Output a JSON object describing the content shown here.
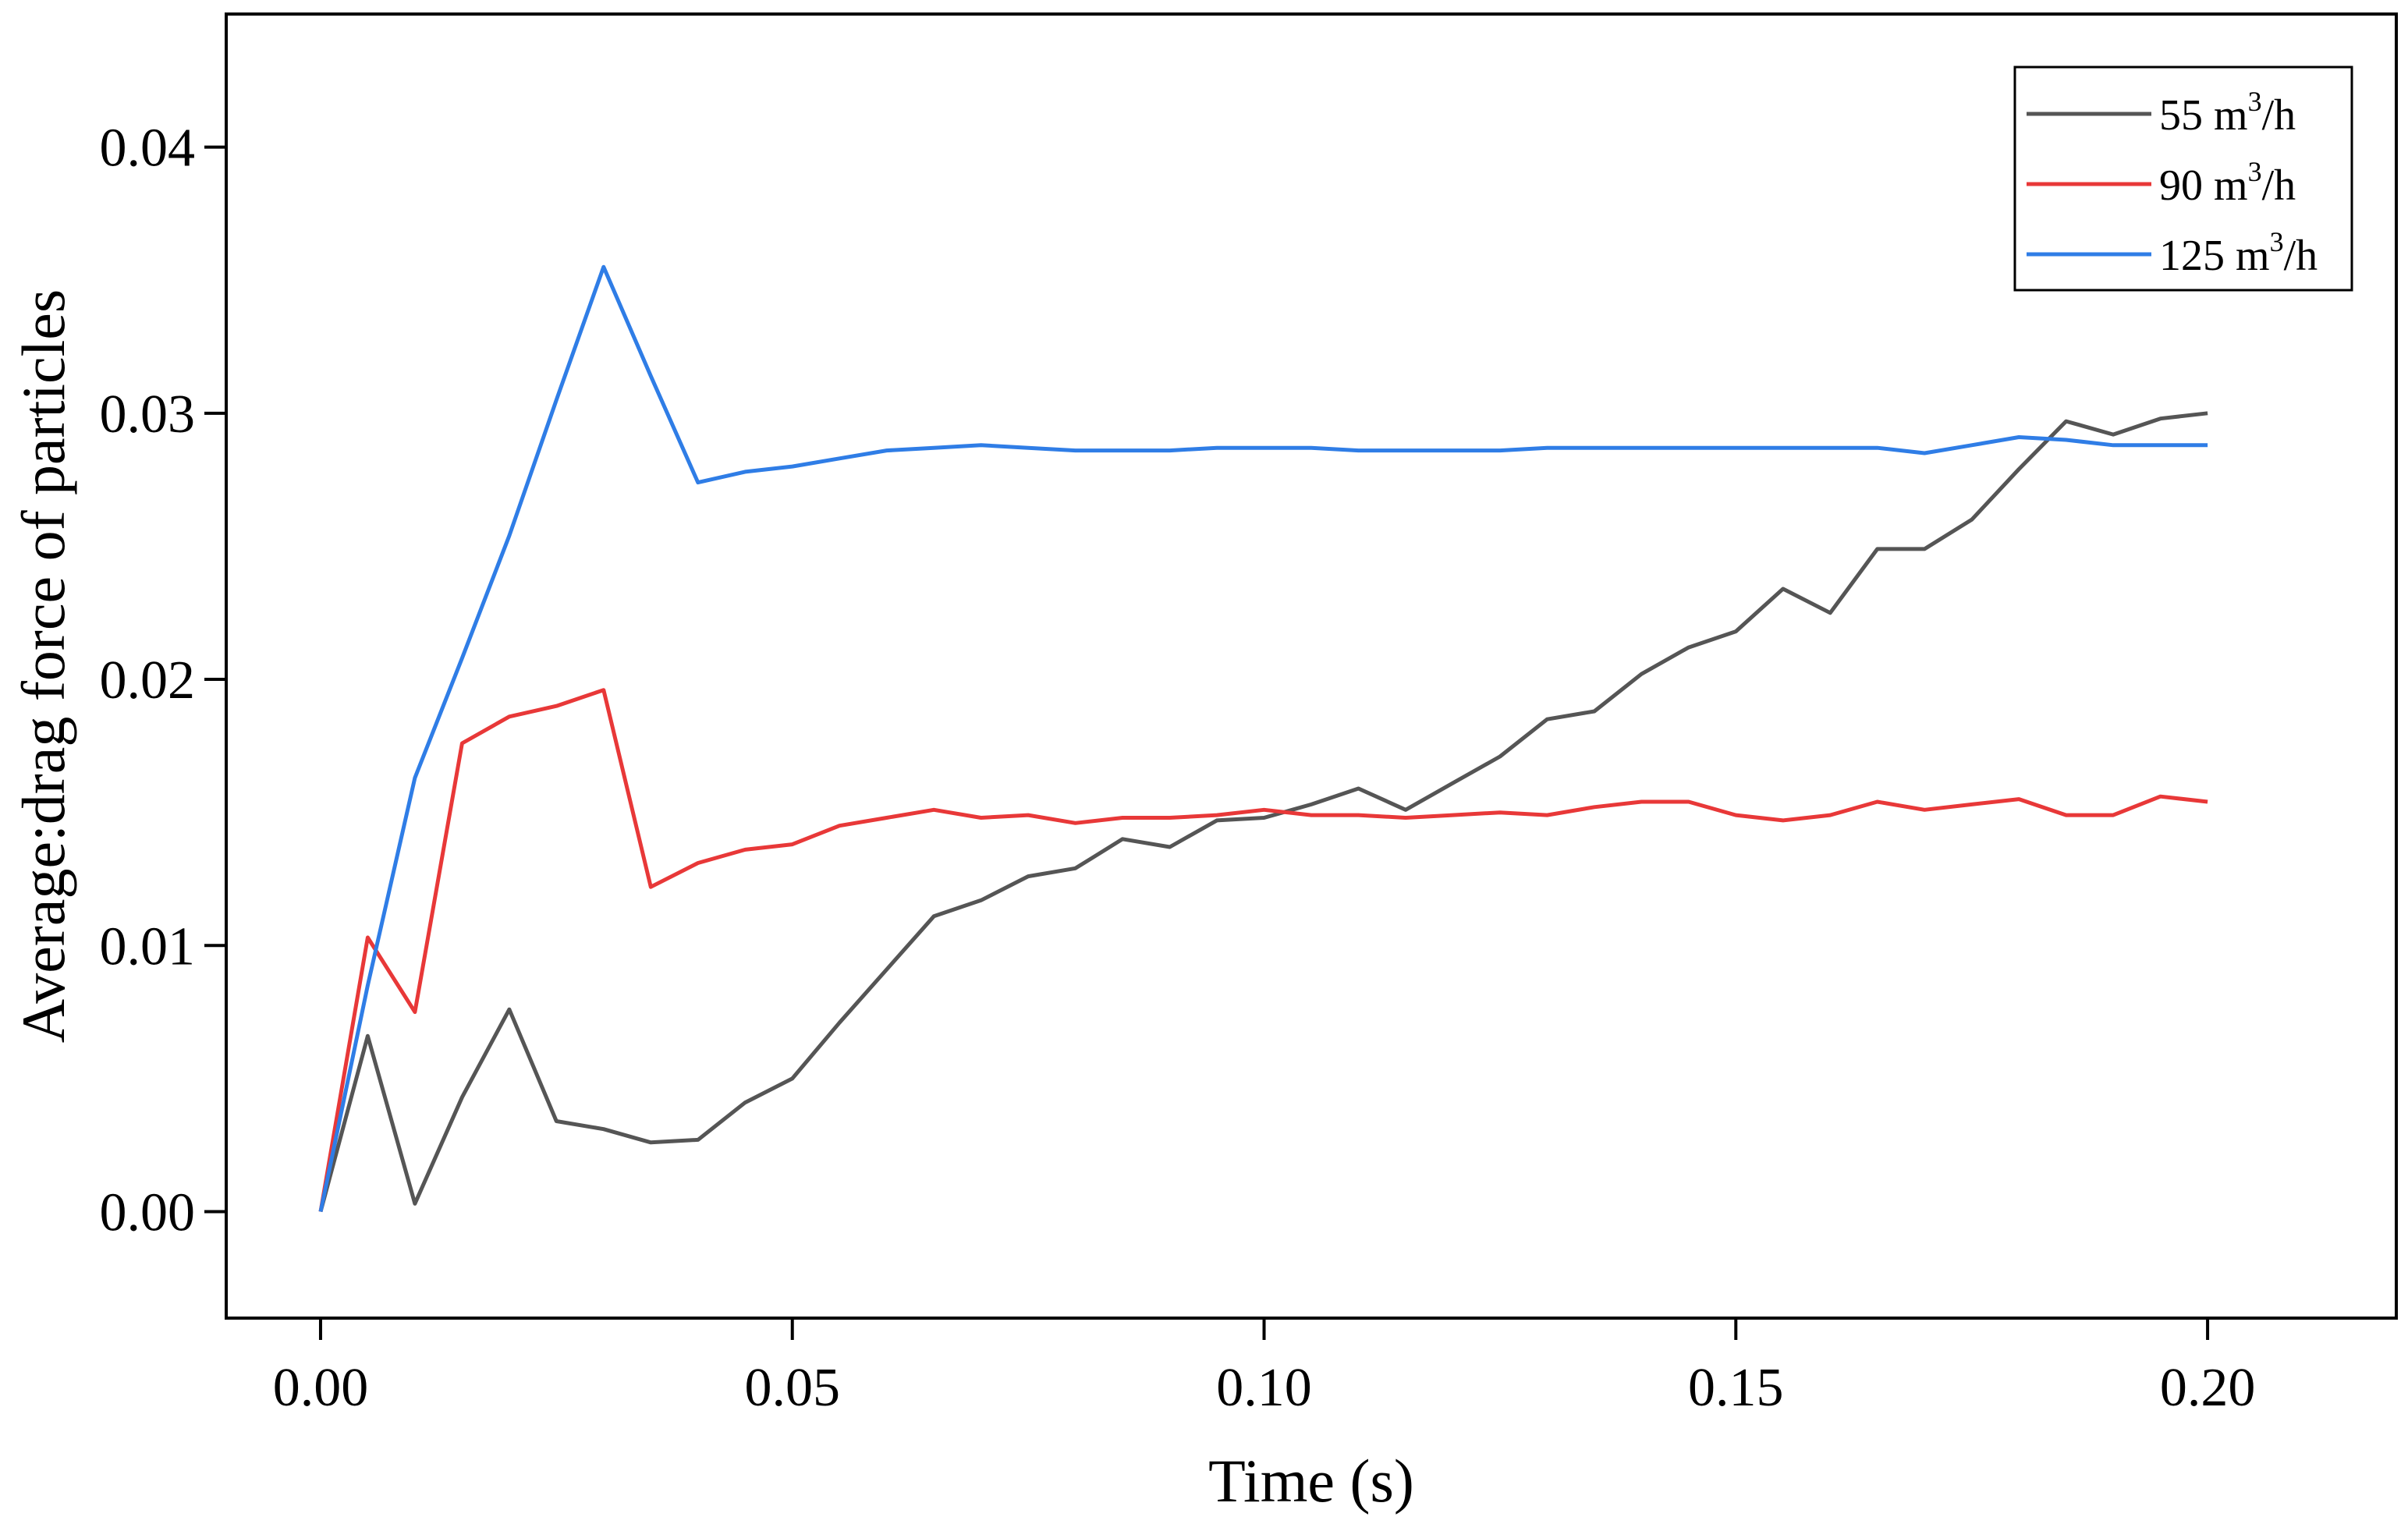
{
  "chart_data": {
    "type": "line",
    "title": "",
    "xlabel": "Time (s)",
    "ylabel": "Average:drag force of particles",
    "xlim": [
      -0.01,
      0.22
    ],
    "ylim": [
      -0.004,
      0.045
    ],
    "xticks": [
      0.0,
      0.05,
      0.1,
      0.15,
      0.2
    ],
    "xtick_labels": [
      "0.00",
      "0.05",
      "0.10",
      "0.15",
      "0.20"
    ],
    "yticks": [
      0.0,
      0.01,
      0.02,
      0.03,
      0.04
    ],
    "ytick_labels": [
      "0.00",
      "0.01",
      "0.02",
      "0.03",
      "0.04"
    ],
    "grid": false,
    "legend_position": "top-right",
    "x": [
      0.0,
      0.005,
      0.01,
      0.015,
      0.02,
      0.025,
      0.03,
      0.035,
      0.04,
      0.045,
      0.05,
      0.055,
      0.06,
      0.065,
      0.07,
      0.075,
      0.08,
      0.085,
      0.09,
      0.095,
      0.1,
      0.105,
      0.11,
      0.115,
      0.12,
      0.125,
      0.13,
      0.135,
      0.14,
      0.145,
      0.15,
      0.155,
      0.16,
      0.165,
      0.17,
      0.175,
      0.18,
      0.185,
      0.19,
      0.195,
      0.2
    ],
    "series": [
      {
        "name": "55 m3/h",
        "legend_base": "55 m",
        "legend_sup": "3",
        "legend_tail": "/h",
        "color": "#555555",
        "values": [
          0.0,
          0.0066,
          0.0003,
          0.0043,
          0.0076,
          0.0034,
          0.0031,
          0.0026,
          0.0027,
          0.0041,
          0.005,
          0.0071,
          0.0091,
          0.0111,
          0.0117,
          0.0126,
          0.0129,
          0.014,
          0.0137,
          0.0147,
          0.0148,
          0.0153,
          0.0159,
          0.0151,
          0.0161,
          0.0171,
          0.0185,
          0.0188,
          0.0202,
          0.0212,
          0.0218,
          0.0234,
          0.0225,
          0.0249,
          0.0249,
          0.026,
          0.0279,
          0.0297,
          0.0292,
          0.0298,
          0.03
        ]
      },
      {
        "name": "90 m3/h",
        "legend_base": "90 m",
        "legend_sup": "3",
        "legend_tail": "/h",
        "color": "#e83838",
        "values": [
          0.0,
          0.0103,
          0.0075,
          0.0176,
          0.0186,
          0.019,
          0.0196,
          0.0122,
          0.0131,
          0.0136,
          0.0138,
          0.0145,
          0.0148,
          0.0151,
          0.0148,
          0.0149,
          0.0146,
          0.0148,
          0.0148,
          0.0149,
          0.0151,
          0.0149,
          0.0149,
          0.0148,
          0.0149,
          0.015,
          0.0149,
          0.0152,
          0.0154,
          0.0154,
          0.0149,
          0.0147,
          0.0149,
          0.0154,
          0.0151,
          0.0153,
          0.0155,
          0.0149,
          0.0149,
          0.0156,
          0.0154
        ]
      },
      {
        "name": "125 m3/h",
        "legend_base": "125 m",
        "legend_sup": "3",
        "legend_tail": "/h",
        "color": "#2f7de6",
        "values": [
          0.0,
          0.0085,
          0.0163,
          0.0208,
          0.0254,
          0.0305,
          0.0355,
          0.0314,
          0.0274,
          0.0278,
          0.028,
          0.0283,
          0.0286,
          0.0287,
          0.0288,
          0.0287,
          0.0286,
          0.0286,
          0.0286,
          0.0287,
          0.0287,
          0.0287,
          0.0286,
          0.0286,
          0.0286,
          0.0286,
          0.0287,
          0.0287,
          0.0287,
          0.0287,
          0.0287,
          0.0287,
          0.0287,
          0.0287,
          0.0285,
          0.0288,
          0.0291,
          0.029,
          0.0288,
          0.0288,
          0.0288
        ]
      }
    ]
  }
}
